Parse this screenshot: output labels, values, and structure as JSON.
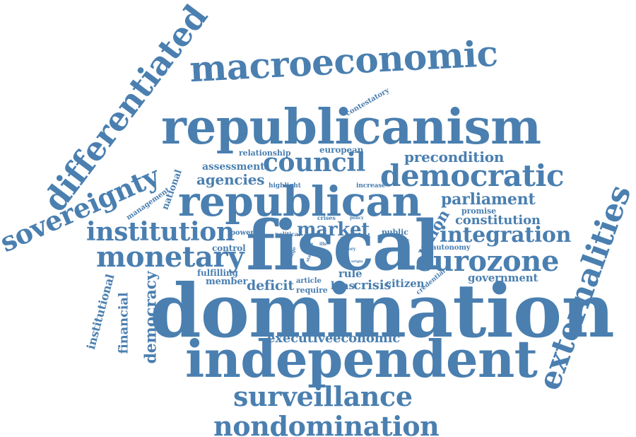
{
  "color": "#4a7fb0",
  "words": [
    "domination",
    "fiscal",
    "republicanism",
    "republican",
    "independent",
    "macroeconomic",
    "differentiated",
    "externalities",
    "sovereignty",
    "nondomination",
    "surveillance",
    "eurozone",
    "monetary",
    "democratic",
    "institution",
    "council",
    "integration",
    "market",
    "democracy",
    "parliament",
    "constitution",
    "union",
    "precondition",
    "agencies",
    "executiveeconomic",
    "financial",
    "institutional",
    "deficit",
    "crisis",
    "government",
    "european",
    "assessment",
    "national",
    "management",
    "relationship",
    "contestatory",
    "member",
    "control",
    "fulfilling",
    "bias",
    "citizen",
    "promise",
    "autonomy",
    "public",
    "rule",
    "power",
    "require",
    "article",
    "credential",
    "increase",
    "highlight",
    "political",
    "crises",
    "countrie",
    "manage",
    "policy",
    "now",
    "level",
    "ills",
    "theory",
    "debt",
    "stable",
    "self",
    "origin"
  ]
}
